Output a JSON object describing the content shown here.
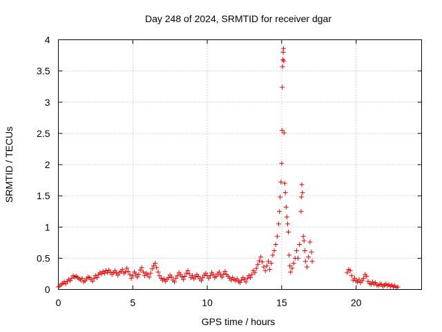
{
  "chart_data": {
    "type": "scatter",
    "title": "Day 248 of 2024, SRMTID for receiver dgar",
    "xlabel": "GPS time / hours",
    "ylabel": "SRMTID / TECUs",
    "xlim": [
      0,
      24.4
    ],
    "ylim": [
      0,
      4
    ],
    "xticks": [
      0,
      5,
      10,
      15,
      20
    ],
    "xtick_labels": [
      "0",
      "5",
      "10",
      "15",
      "20"
    ],
    "yticks": [
      0,
      0.5,
      1,
      1.5,
      2,
      2.5,
      3,
      3.5,
      4
    ],
    "ytick_labels": [
      "0",
      "0.5",
      "1",
      "1.5",
      "2",
      "2.5",
      "3",
      "3.5",
      "4"
    ],
    "grid": true,
    "marker": "+",
    "color": "#e00000",
    "series": [
      {
        "name": "SRMTID",
        "points": [
          [
            0.0,
            0.04
          ],
          [
            0.1,
            0.06
          ],
          [
            0.2,
            0.08
          ],
          [
            0.3,
            0.1
          ],
          [
            0.4,
            0.12
          ],
          [
            0.5,
            0.09
          ],
          [
            0.6,
            0.13
          ],
          [
            0.7,
            0.16
          ],
          [
            0.8,
            0.14
          ],
          [
            0.9,
            0.18
          ],
          [
            1.0,
            0.22
          ],
          [
            1.1,
            0.2
          ],
          [
            1.2,
            0.21
          ],
          [
            1.3,
            0.19
          ],
          [
            1.4,
            0.17
          ],
          [
            1.5,
            0.15
          ],
          [
            1.6,
            0.18
          ],
          [
            1.7,
            0.12
          ],
          [
            1.8,
            0.14
          ],
          [
            1.9,
            0.17
          ],
          [
            2.0,
            0.2
          ],
          [
            2.1,
            0.19
          ],
          [
            2.2,
            0.16
          ],
          [
            2.3,
            0.13
          ],
          [
            2.4,
            0.18
          ],
          [
            2.5,
            0.22
          ],
          [
            2.6,
            0.19
          ],
          [
            2.7,
            0.24
          ],
          [
            2.8,
            0.27
          ],
          [
            2.9,
            0.25
          ],
          [
            3.0,
            0.29
          ],
          [
            3.1,
            0.26
          ],
          [
            3.2,
            0.3
          ],
          [
            3.3,
            0.27
          ],
          [
            3.4,
            0.31
          ],
          [
            3.5,
            0.28
          ],
          [
            3.6,
            0.24
          ],
          [
            3.7,
            0.27
          ],
          [
            3.8,
            0.3
          ],
          [
            3.9,
            0.26
          ],
          [
            4.0,
            0.23
          ],
          [
            4.1,
            0.27
          ],
          [
            4.2,
            0.29
          ],
          [
            4.3,
            0.32
          ],
          [
            4.4,
            0.26
          ],
          [
            4.5,
            0.28
          ],
          [
            4.6,
            0.34
          ],
          [
            4.7,
            0.29
          ],
          [
            4.8,
            0.24
          ],
          [
            4.9,
            0.18
          ],
          [
            5.0,
            0.22
          ],
          [
            5.1,
            0.28
          ],
          [
            5.2,
            0.25
          ],
          [
            5.3,
            0.2
          ],
          [
            5.4,
            0.24
          ],
          [
            5.5,
            0.31
          ],
          [
            5.6,
            0.35
          ],
          [
            5.7,
            0.28
          ],
          [
            5.8,
            0.22
          ],
          [
            5.9,
            0.26
          ],
          [
            6.0,
            0.24
          ],
          [
            6.1,
            0.2
          ],
          [
            6.2,
            0.26
          ],
          [
            6.3,
            0.33
          ],
          [
            6.4,
            0.38
          ],
          [
            6.5,
            0.42
          ],
          [
            6.6,
            0.35
          ],
          [
            6.7,
            0.28
          ],
          [
            6.8,
            0.22
          ],
          [
            6.9,
            0.18
          ],
          [
            7.0,
            0.15
          ],
          [
            7.1,
            0.17
          ],
          [
            7.2,
            0.13
          ],
          [
            7.3,
            0.16
          ],
          [
            7.4,
            0.19
          ],
          [
            7.5,
            0.23
          ],
          [
            7.6,
            0.2
          ],
          [
            7.7,
            0.15
          ],
          [
            7.8,
            0.12
          ],
          [
            7.9,
            0.18
          ],
          [
            8.0,
            0.22
          ],
          [
            8.1,
            0.27
          ],
          [
            8.2,
            0.24
          ],
          [
            8.3,
            0.2
          ],
          [
            8.4,
            0.16
          ],
          [
            8.5,
            0.21
          ],
          [
            8.6,
            0.26
          ],
          [
            8.7,
            0.3
          ],
          [
            8.8,
            0.25
          ],
          [
            8.9,
            0.19
          ],
          [
            9.0,
            0.22
          ],
          [
            9.1,
            0.17
          ],
          [
            9.2,
            0.2
          ],
          [
            9.3,
            0.24
          ],
          [
            9.4,
            0.21
          ],
          [
            9.5,
            0.17
          ],
          [
            9.6,
            0.14
          ],
          [
            9.7,
            0.19
          ],
          [
            9.8,
            0.23
          ],
          [
            9.9,
            0.26
          ],
          [
            10.0,
            0.22
          ],
          [
            10.1,
            0.18
          ],
          [
            10.2,
            0.22
          ],
          [
            10.3,
            0.27
          ],
          [
            10.4,
            0.24
          ],
          [
            10.5,
            0.19
          ],
          [
            10.6,
            0.21
          ],
          [
            10.7,
            0.25
          ],
          [
            10.8,
            0.28
          ],
          [
            10.9,
            0.23
          ],
          [
            11.0,
            0.2
          ],
          [
            11.1,
            0.25
          ],
          [
            11.2,
            0.29
          ],
          [
            11.3,
            0.24
          ],
          [
            11.4,
            0.21
          ],
          [
            11.5,
            0.18
          ],
          [
            11.6,
            0.15
          ],
          [
            11.7,
            0.19
          ],
          [
            11.8,
            0.16
          ],
          [
            11.9,
            0.14
          ],
          [
            12.0,
            0.17
          ],
          [
            12.1,
            0.13
          ],
          [
            12.2,
            0.11
          ],
          [
            12.3,
            0.15
          ],
          [
            12.4,
            0.19
          ],
          [
            12.5,
            0.16
          ],
          [
            12.6,
            0.12
          ],
          [
            12.7,
            0.18
          ],
          [
            12.8,
            0.22
          ],
          [
            12.9,
            0.19
          ],
          [
            13.0,
            0.24
          ],
          [
            13.1,
            0.3
          ],
          [
            13.2,
            0.27
          ],
          [
            13.3,
            0.34
          ],
          [
            13.4,
            0.4
          ],
          [
            13.5,
            0.46
          ],
          [
            13.6,
            0.52
          ],
          [
            13.7,
            0.44
          ],
          [
            13.8,
            0.36
          ],
          [
            13.9,
            0.3
          ],
          [
            14.0,
            0.38
          ],
          [
            14.1,
            0.45
          ],
          [
            14.2,
            0.32
          ],
          [
            14.3,
            0.42
          ],
          [
            14.4,
            0.55
          ],
          [
            14.5,
            0.62
          ],
          [
            14.6,
            0.72
          ],
          [
            14.7,
            0.85
          ],
          [
            14.8,
            1.05
          ],
          [
            14.85,
            1.25
          ],
          [
            14.9,
            1.48
          ],
          [
            14.95,
            1.72
          ],
          [
            15.0,
            2.02
          ],
          [
            15.02,
            2.55
          ],
          [
            15.04,
            3.24
          ],
          [
            15.06,
            3.57
          ],
          [
            15.08,
            3.68
          ],
          [
            15.1,
            3.8
          ],
          [
            15.12,
            3.86
          ],
          [
            15.14,
            3.66
          ],
          [
            15.16,
            2.51
          ],
          [
            15.2,
            1.7
          ],
          [
            15.25,
            1.55
          ],
          [
            15.3,
            1.32
          ],
          [
            15.35,
            1.16
          ],
          [
            15.4,
            1.05
          ],
          [
            15.45,
            0.92
          ],
          [
            15.5,
            0.55
          ],
          [
            15.55,
            0.38
          ],
          [
            15.6,
            0.28
          ],
          [
            15.7,
            0.34
          ],
          [
            15.8,
            0.42
          ],
          [
            15.9,
            0.5
          ],
          [
            16.0,
            0.62
          ],
          [
            16.1,
            0.5
          ],
          [
            16.2,
            0.72
          ],
          [
            16.3,
            1.25
          ],
          [
            16.32,
            1.48
          ],
          [
            16.35,
            1.68
          ],
          [
            16.4,
            1.55
          ],
          [
            16.45,
            0.85
          ],
          [
            16.5,
            0.78
          ],
          [
            16.55,
            0.62
          ],
          [
            16.6,
            0.45
          ],
          [
            16.7,
            0.36
          ],
          [
            16.8,
            0.52
          ],
          [
            16.9,
            0.76
          ],
          [
            17.0,
            0.6
          ],
          [
            17.05,
            0.45
          ],
          [
            19.4,
            0.27
          ],
          [
            19.5,
            0.32
          ],
          [
            19.6,
            0.3
          ],
          [
            19.7,
            0.22
          ],
          [
            19.8,
            0.15
          ],
          [
            19.9,
            0.18
          ],
          [
            20.0,
            0.14
          ],
          [
            20.1,
            0.12
          ],
          [
            20.2,
            0.16
          ],
          [
            20.3,
            0.11
          ],
          [
            20.4,
            0.14
          ],
          [
            20.5,
            0.18
          ],
          [
            20.6,
            0.24
          ],
          [
            20.7,
            0.21
          ],
          [
            20.8,
            0.13
          ],
          [
            20.9,
            0.1
          ],
          [
            21.0,
            0.08
          ],
          [
            21.1,
            0.12
          ],
          [
            21.2,
            0.09
          ],
          [
            21.3,
            0.11
          ],
          [
            21.4,
            0.07
          ],
          [
            21.5,
            0.06
          ],
          [
            21.6,
            0.09
          ],
          [
            21.7,
            0.08
          ],
          [
            21.8,
            0.05
          ],
          [
            21.9,
            0.07
          ],
          [
            22.0,
            0.09
          ],
          [
            22.1,
            0.06
          ],
          [
            22.2,
            0.08
          ],
          [
            22.3,
            0.05
          ],
          [
            22.4,
            0.07
          ],
          [
            22.5,
            0.04
          ],
          [
            22.6,
            0.06
          ],
          [
            22.7,
            0.03
          ],
          [
            22.8,
            0.04
          ]
        ]
      }
    ]
  }
}
